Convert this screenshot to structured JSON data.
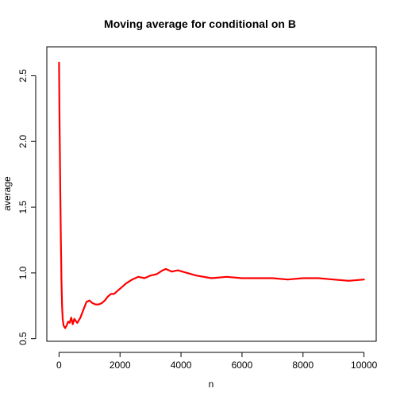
{
  "chart_data": {
    "type": "scatter",
    "title": "Moving average for conditional on B",
    "xlabel": "n",
    "ylabel": "average",
    "xlim": [
      -400,
      10400
    ],
    "ylim": [
      0.48,
      2.72
    ],
    "x_ticks": [
      0,
      2000,
      4000,
      6000,
      8000,
      10000
    ],
    "x_tick_labels": [
      "0",
      "2000",
      "4000",
      "6000",
      "8000",
      "10000"
    ],
    "y_ticks": [
      0.5,
      1.0,
      1.5,
      2.0,
      2.5
    ],
    "y_tick_labels": [
      "0.5",
      "1.0",
      "1.5",
      "2.0",
      "2.5"
    ],
    "grid": false,
    "color": "#ff0000",
    "series": [
      {
        "x": [
          1,
          5,
          10,
          20,
          30,
          40,
          50,
          60,
          70,
          80,
          90,
          100,
          120,
          150,
          200,
          250,
          300,
          350,
          400,
          450,
          500,
          600,
          700,
          800,
          900,
          1000,
          1100,
          1200,
          1300,
          1400,
          1500,
          1600,
          1700,
          1800,
          2000,
          2200,
          2400,
          2600,
          2800,
          3000,
          3200,
          3400,
          3500,
          3700,
          3900,
          4200,
          4500,
          5000,
          5500,
          6000,
          6500,
          7000,
          7500,
          8000,
          8200,
          8500,
          9000,
          9500,
          10000
        ],
        "y": [
          2.6,
          2.45,
          2.3,
          2.1,
          1.9,
          1.65,
          1.45,
          1.25,
          1.1,
          0.95,
          0.85,
          0.75,
          0.65,
          0.6,
          0.58,
          0.6,
          0.63,
          0.62,
          0.66,
          0.61,
          0.65,
          0.62,
          0.66,
          0.72,
          0.78,
          0.79,
          0.77,
          0.76,
          0.76,
          0.77,
          0.79,
          0.82,
          0.84,
          0.84,
          0.88,
          0.92,
          0.95,
          0.97,
          0.96,
          0.98,
          0.99,
          1.02,
          1.03,
          1.01,
          1.02,
          1.0,
          0.98,
          0.96,
          0.97,
          0.96,
          0.96,
          0.96,
          0.95,
          0.96,
          0.96,
          0.96,
          0.95,
          0.94,
          0.95
        ]
      }
    ]
  }
}
